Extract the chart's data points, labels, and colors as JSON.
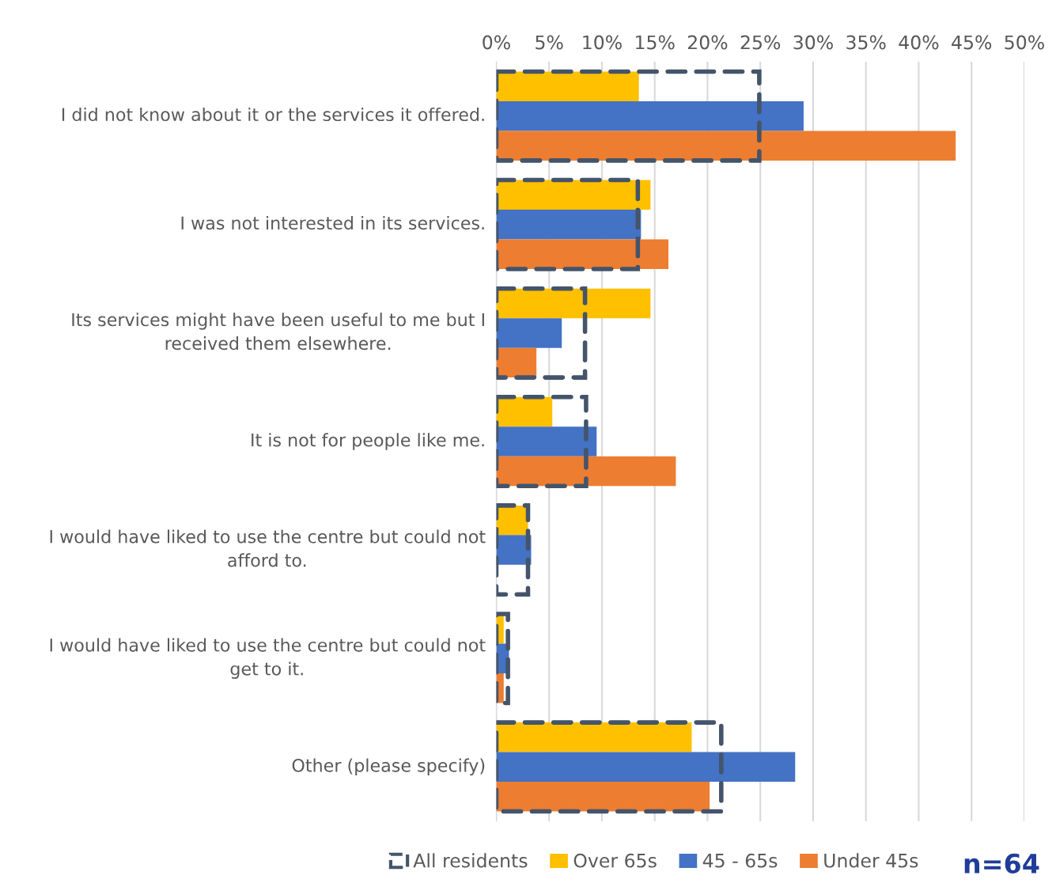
{
  "chart_data": {
    "type": "bar",
    "orientation": "horizontal",
    "categories": [
      "I did not know about it or the services it offered.",
      "I was not interested in its services.",
      "Its services might have been useful to me but I received them elsewhere.",
      "It is not for people like me.",
      "I would have liked to use the centre but could not afford to.",
      "I would have liked to use the centre but could not get to it.",
      "Other (please specify)"
    ],
    "series": [
      {
        "name": "All residents",
        "color": "#44546a",
        "line_style": "dashed",
        "values": [
          24.9,
          13.4,
          8.4,
          8.5,
          3.0,
          1.1,
          21.3
        ]
      },
      {
        "name": "Over 65s",
        "color": "#ffc000",
        "values": [
          13.5,
          14.6,
          14.6,
          5.3,
          3.0,
          0.7,
          18.5
        ]
      },
      {
        "name": "45 - 65s",
        "color": "#4472c4",
        "values": [
          29.1,
          13.7,
          6.2,
          9.5,
          3.3,
          1.2,
          28.3
        ]
      },
      {
        "name": "Under 45s",
        "color": "#ed7d31",
        "values": [
          43.5,
          16.3,
          3.8,
          17.0,
          0,
          0.7,
          20.2
        ]
      }
    ],
    "xlim": [
      0,
      50
    ],
    "xticks": [
      {
        "value": 0,
        "label": "0%"
      },
      {
        "value": 5,
        "label": "5%"
      },
      {
        "value": 10,
        "label": "10%"
      },
      {
        "value": 15,
        "label": "15%"
      },
      {
        "value": 20,
        "label": "20%"
      },
      {
        "value": 25,
        "label": "25%"
      },
      {
        "value": 30,
        "label": "30%"
      },
      {
        "value": 35,
        "label": "35%"
      },
      {
        "value": 40,
        "label": "40%"
      },
      {
        "value": 45,
        "label": "45%"
      },
      {
        "value": 50,
        "label": "50%"
      }
    ],
    "grid": "x",
    "legend": "bottom",
    "annotations": [
      "n=64"
    ]
  }
}
